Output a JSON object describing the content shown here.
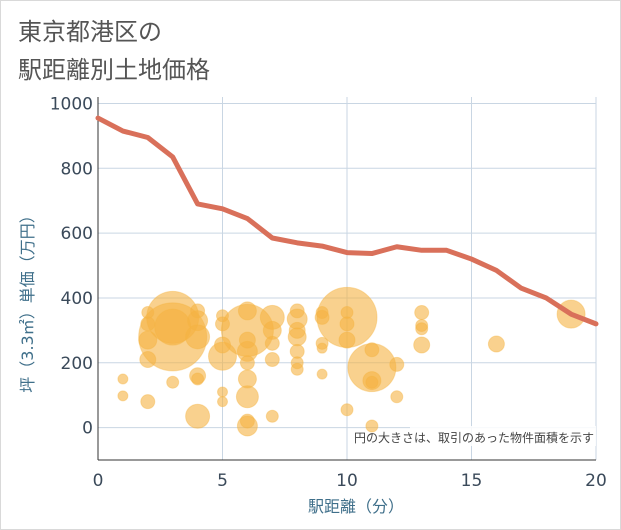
{
  "chart_data": {
    "type": "scatter",
    "title": [
      "東京都港区の",
      "駅距離別土地価格"
    ],
    "xlabel": "駅距離（分）",
    "ylabel": "坪（3.3㎡）単価（万円）",
    "note": "円の大きさは、取引のあった物件面積を示す",
    "xlim": [
      0,
      20
    ],
    "ylim": [
      -100,
      1020
    ],
    "xticks": [
      0,
      5,
      10,
      15,
      20
    ],
    "yticks": [
      0,
      200,
      400,
      600,
      800,
      1000
    ],
    "grid": true,
    "colors": {
      "bubble": "#f5b342",
      "line": "#d9705a",
      "grid": "#c9d6e3"
    },
    "line": {
      "x": [
        0,
        1,
        2,
        3,
        4,
        5,
        6,
        7,
        8,
        9,
        10,
        11,
        12,
        13,
        14,
        15,
        16,
        17,
        18,
        19,
        20
      ],
      "y": [
        955,
        915,
        895,
        835,
        690,
        675,
        645,
        585,
        570,
        560,
        540,
        537,
        558,
        547,
        547,
        520,
        485,
        430,
        400,
        350,
        320
      ]
    },
    "bubbles": [
      {
        "x": 1,
        "y": 150,
        "s": 5
      },
      {
        "x": 1,
        "y": 98,
        "s": 5
      },
      {
        "x": 2,
        "y": 355,
        "s": 6
      },
      {
        "x": 2,
        "y": 320,
        "s": 7
      },
      {
        "x": 2,
        "y": 270,
        "s": 9
      },
      {
        "x": 2,
        "y": 210,
        "s": 8
      },
      {
        "x": 2,
        "y": 80,
        "s": 7
      },
      {
        "x": 3,
        "y": 340,
        "s": 26
      },
      {
        "x": 3,
        "y": 310,
        "s": 18
      },
      {
        "x": 3,
        "y": 280,
        "s": 34
      },
      {
        "x": 3,
        "y": 140,
        "s": 6
      },
      {
        "x": 4,
        "y": 360,
        "s": 7
      },
      {
        "x": 4,
        "y": 330,
        "s": 10
      },
      {
        "x": 4,
        "y": 280,
        "s": 12
      },
      {
        "x": 4,
        "y": 160,
        "s": 8
      },
      {
        "x": 4,
        "y": 150,
        "s": 6
      },
      {
        "x": 4,
        "y": 35,
        "s": 12
      },
      {
        "x": 5,
        "y": 345,
        "s": 6
      },
      {
        "x": 5,
        "y": 320,
        "s": 7
      },
      {
        "x": 5,
        "y": 255,
        "s": 8
      },
      {
        "x": 5,
        "y": 220,
        "s": 14
      },
      {
        "x": 5,
        "y": 110,
        "s": 5
      },
      {
        "x": 5,
        "y": 80,
        "s": 5
      },
      {
        "x": 6,
        "y": 360,
        "s": 9
      },
      {
        "x": 6,
        "y": 300,
        "s": 26
      },
      {
        "x": 6,
        "y": 270,
        "s": 8
      },
      {
        "x": 6,
        "y": 235,
        "s": 10
      },
      {
        "x": 6,
        "y": 200,
        "s": 7
      },
      {
        "x": 6,
        "y": 150,
        "s": 9
      },
      {
        "x": 6,
        "y": 95,
        "s": 11
      },
      {
        "x": 6,
        "y": 20,
        "s": 7
      },
      {
        "x": 6,
        "y": 5,
        "s": 10
      },
      {
        "x": 7,
        "y": 340,
        "s": 12
      },
      {
        "x": 7,
        "y": 300,
        "s": 9
      },
      {
        "x": 7,
        "y": 260,
        "s": 7
      },
      {
        "x": 7,
        "y": 210,
        "s": 7
      },
      {
        "x": 7,
        "y": 35,
        "s": 6
      },
      {
        "x": 8,
        "y": 360,
        "s": 7
      },
      {
        "x": 8,
        "y": 335,
        "s": 10
      },
      {
        "x": 8,
        "y": 300,
        "s": 8
      },
      {
        "x": 8,
        "y": 280,
        "s": 9
      },
      {
        "x": 8,
        "y": 235,
        "s": 7
      },
      {
        "x": 8,
        "y": 200,
        "s": 6
      },
      {
        "x": 8,
        "y": 180,
        "s": 6
      },
      {
        "x": 9,
        "y": 355,
        "s": 6
      },
      {
        "x": 9,
        "y": 340,
        "s": 7
      },
      {
        "x": 9,
        "y": 260,
        "s": 6
      },
      {
        "x": 9,
        "y": 245,
        "s": 5
      },
      {
        "x": 9,
        "y": 165,
        "s": 5
      },
      {
        "x": 10,
        "y": 355,
        "s": 6
      },
      {
        "x": 10,
        "y": 340,
        "s": 30
      },
      {
        "x": 10,
        "y": 320,
        "s": 7
      },
      {
        "x": 10,
        "y": 270,
        "s": 8
      },
      {
        "x": 10,
        "y": 55,
        "s": 6
      },
      {
        "x": 11,
        "y": 240,
        "s": 7
      },
      {
        "x": 11,
        "y": 185,
        "s": 24
      },
      {
        "x": 11,
        "y": 145,
        "s": 9
      },
      {
        "x": 11,
        "y": 140,
        "s": 6
      },
      {
        "x": 11,
        "y": 5,
        "s": 6
      },
      {
        "x": 12,
        "y": 195,
        "s": 7
      },
      {
        "x": 12,
        "y": 95,
        "s": 6
      },
      {
        "x": 13,
        "y": 355,
        "s": 7
      },
      {
        "x": 13,
        "y": 315,
        "s": 6
      },
      {
        "x": 13,
        "y": 305,
        "s": 6
      },
      {
        "x": 13,
        "y": 255,
        "s": 8
      },
      {
        "x": 16,
        "y": 258,
        "s": 8
      },
      {
        "x": 19,
        "y": 350,
        "s": 14
      }
    ]
  }
}
